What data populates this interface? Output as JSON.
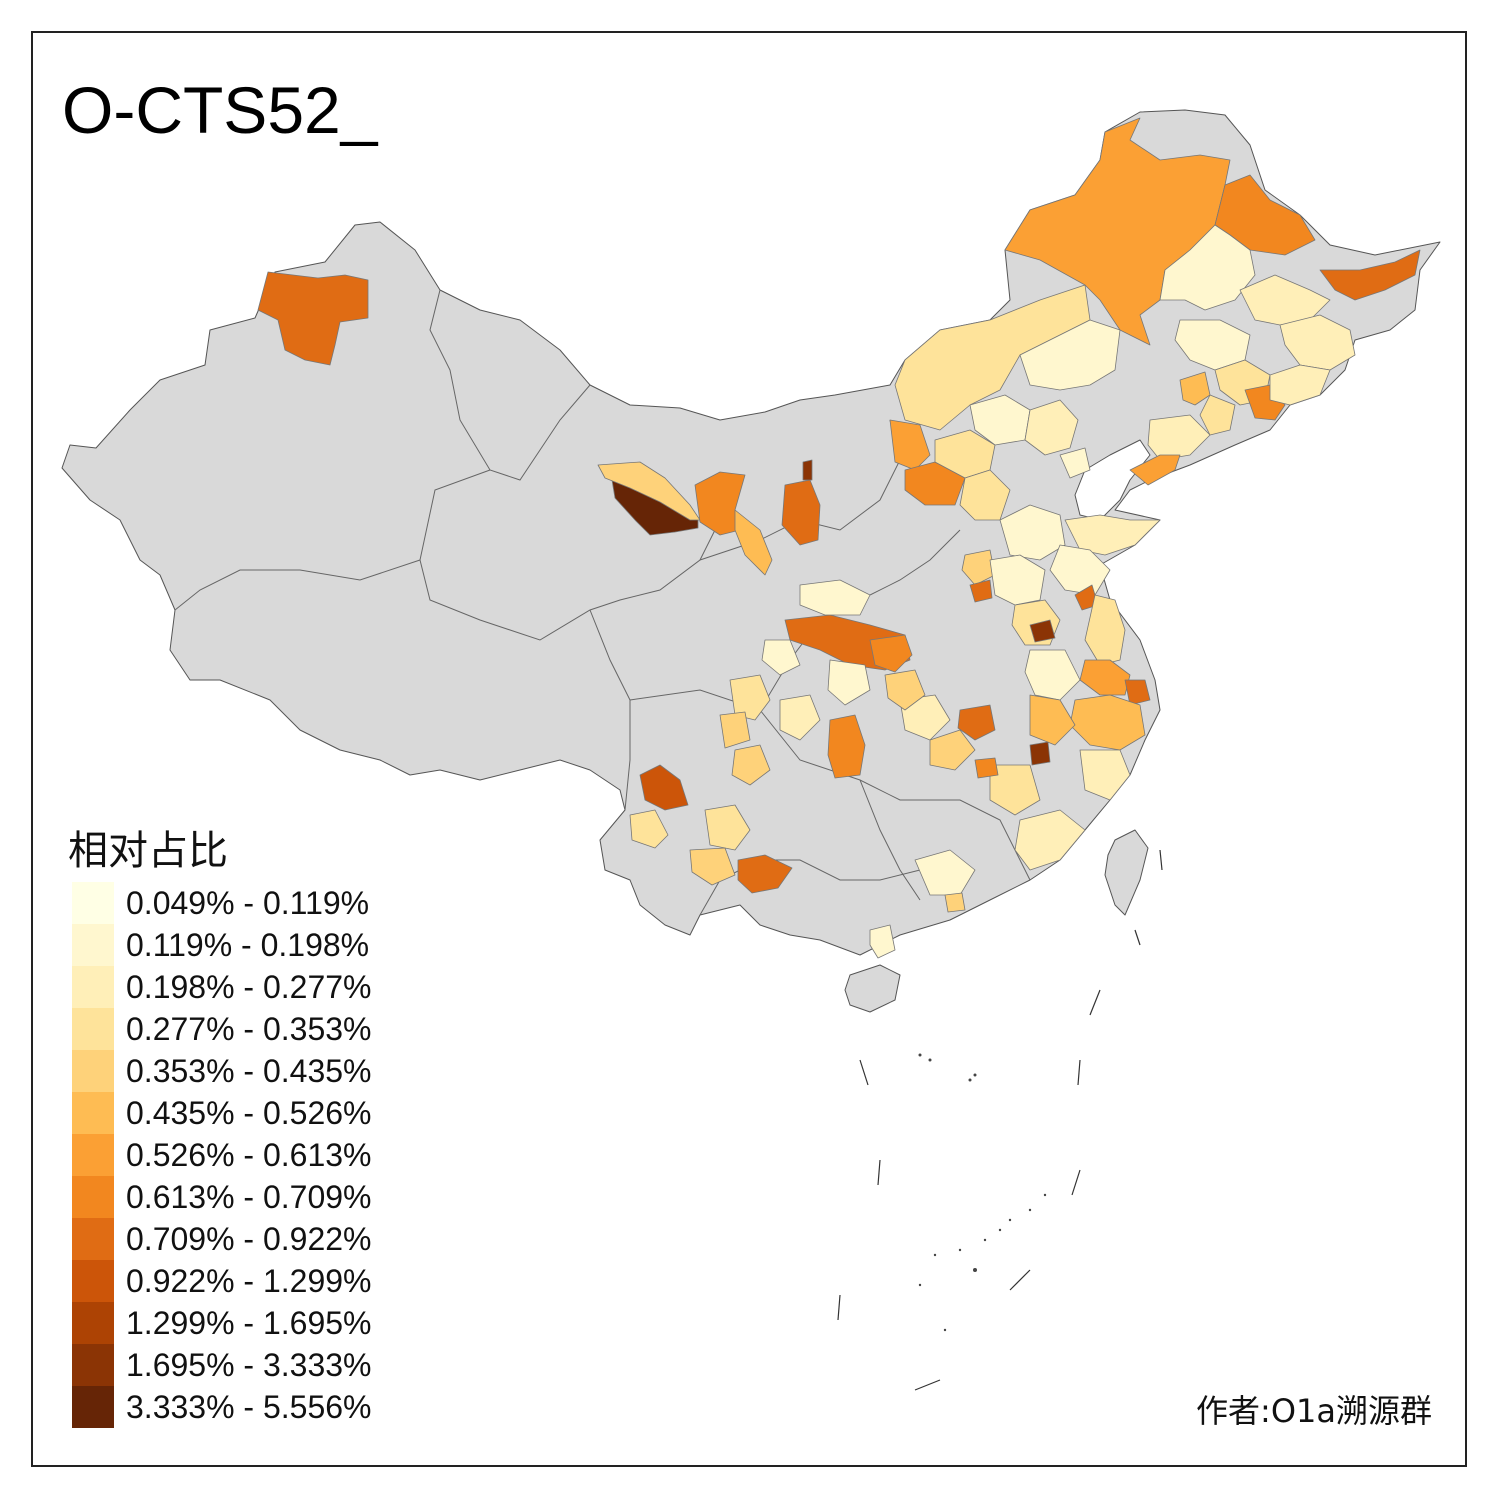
{
  "title": "O-CTS52_",
  "legend": {
    "title": "相对占比",
    "items": [
      {
        "label": "0.049% - 0.119%",
        "color": "#FFFFE5"
      },
      {
        "label": "0.119% - 0.198%",
        "color": "#FFF7CF"
      },
      {
        "label": "0.198% - 0.277%",
        "color": "#FFEFB8"
      },
      {
        "label": "0.277% - 0.353%",
        "color": "#FEE39A"
      },
      {
        "label": "0.353% - 0.435%",
        "color": "#FED27A"
      },
      {
        "label": "0.435% - 0.526%",
        "color": "#FEBC53"
      },
      {
        "label": "0.526% - 0.613%",
        "color": "#FBA034"
      },
      {
        "label": "0.613% - 0.709%",
        "color": "#F2871F"
      },
      {
        "label": "0.709% - 0.922%",
        "color": "#E06C14"
      },
      {
        "label": "0.922% - 1.299%",
        "color": "#CC5509"
      },
      {
        "label": "1.299% - 1.695%",
        "color": "#AD4304"
      },
      {
        "label": "1.695% - 3.333%",
        "color": "#8B3405"
      },
      {
        "label": "3.333% - 5.556%",
        "color": "#662506"
      }
    ]
  },
  "credit": "作者:O1a溯源群",
  "colors": {
    "no_data": "#D9D9D9",
    "boundary": "#555555",
    "frame": "#222222"
  }
}
